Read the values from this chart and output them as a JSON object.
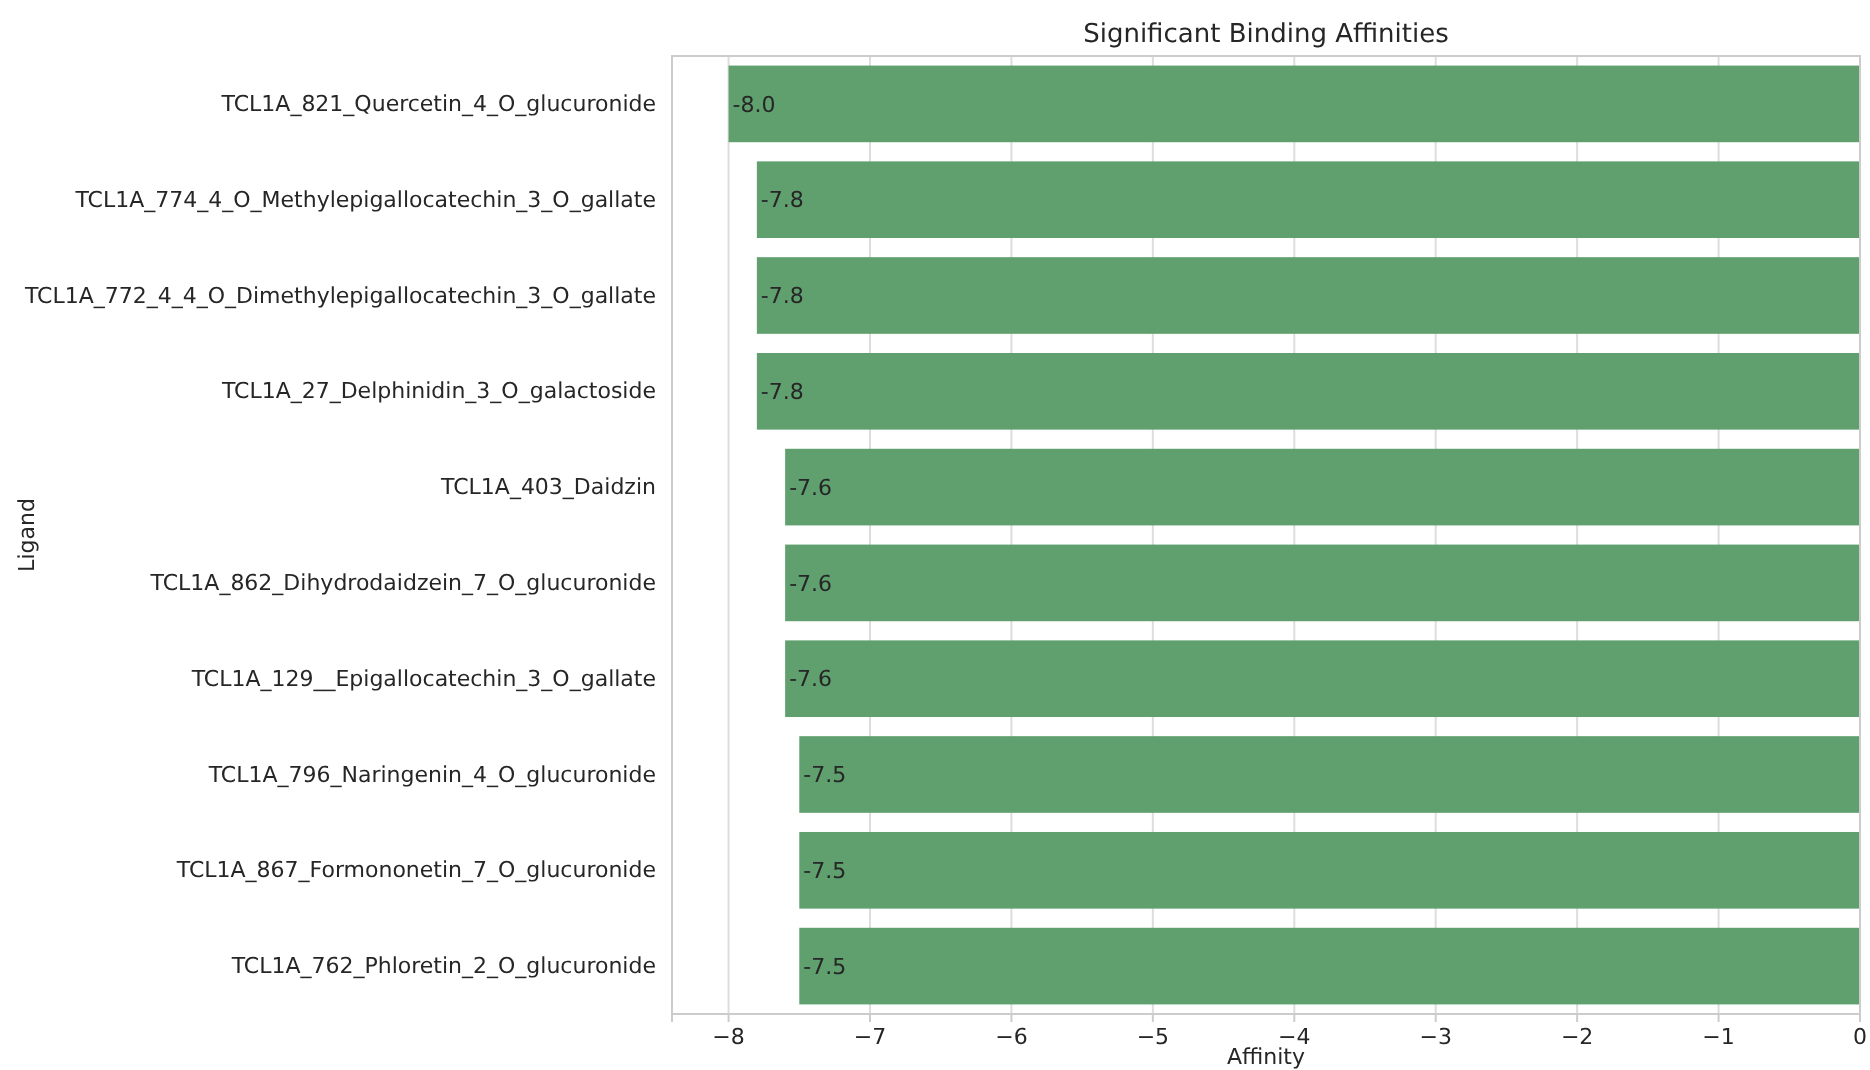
{
  "chart_data": {
    "type": "bar",
    "orientation": "horizontal",
    "title": "Significant Binding Affinities",
    "xlabel": "Affinity",
    "ylabel": "Ligand",
    "categories": [
      "TCL1A_821_Quercetin_4_O_glucuronide",
      "TCL1A_774_4_O_Methylepigallocatechin_3_O_gallate",
      "TCL1A_772_4_4_O_Dimethylepigallocatechin_3_O_gallate",
      "TCL1A_27_Delphinidin_3_O_galactoside",
      "TCL1A_403_Daidzin",
      "TCL1A_862_Dihydrodaidzein_7_O_glucuronide",
      "TCL1A_129__Epigallocatechin_3_O_gallate",
      "TCL1A_796_Naringenin_4_O_glucuronide",
      "TCL1A_867_Formononetin_7_O_glucuronide",
      "TCL1A_762_Phloretin_2_O_glucuronide"
    ],
    "values": [
      -8.0,
      -7.8,
      -7.8,
      -7.8,
      -7.6,
      -7.6,
      -7.6,
      -7.5,
      -7.5,
      -7.5
    ],
    "value_labels": [
      "-8.0",
      "-7.8",
      "-7.8",
      "-7.8",
      "-7.6",
      "-7.6",
      "-7.6",
      "-7.5",
      "-7.5",
      "-7.5"
    ],
    "color": "#5fa06e",
    "xlim": [
      -8.4,
      0
    ],
    "xticks": [
      {
        "value": -8,
        "label": "−8"
      },
      {
        "value": -7,
        "label": "−7"
      },
      {
        "value": -6,
        "label": "−6"
      },
      {
        "value": -5,
        "label": "−5"
      },
      {
        "value": -4,
        "label": "−4"
      },
      {
        "value": -3,
        "label": "−3"
      },
      {
        "value": -2,
        "label": "−2"
      },
      {
        "value": -1,
        "label": "−1"
      },
      0
    ],
    "grid": "x"
  }
}
